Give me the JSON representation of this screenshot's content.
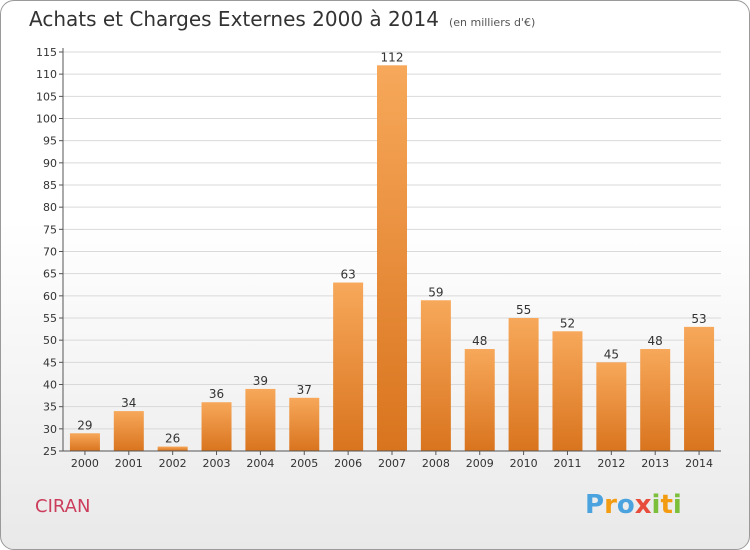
{
  "title": "Achats et Charges Externes 2000 à 2014",
  "subtitle": "(en milliers d'€)",
  "town": "CIRAN",
  "logo": {
    "text": "Proxiti",
    "letters": [
      {
        "ch": "P",
        "color": "#4aa3df"
      },
      {
        "ch": "r",
        "color": "#f39c12"
      },
      {
        "ch": "o",
        "color": "#4aa3df"
      },
      {
        "ch": "x",
        "color": "#e74c3c"
      },
      {
        "ch": "i",
        "color": "#7bbf3a"
      },
      {
        "ch": "t",
        "color": "#f39c12"
      },
      {
        "ch": "i",
        "color": "#7bbf3a"
      }
    ]
  },
  "colors": {
    "bar_light": "#f7a85a",
    "bar_dark": "#d9741e",
    "grid": "#d9d9d9",
    "axis": "#555555",
    "town": "#cc3d5c"
  },
  "chart_data": {
    "type": "bar",
    "categories": [
      "2000",
      "2001",
      "2002",
      "2003",
      "2004",
      "2005",
      "2006",
      "2007",
      "2008",
      "2009",
      "2010",
      "2011",
      "2012",
      "2013",
      "2014"
    ],
    "values": [
      29,
      34,
      26,
      36,
      39,
      37,
      63,
      112,
      59,
      48,
      55,
      52,
      45,
      48,
      53
    ],
    "title": "Achats et Charges Externes 2000 à 2014",
    "ylim": [
      25,
      115
    ],
    "yticks": [
      25,
      30,
      35,
      40,
      45,
      50,
      55,
      60,
      65,
      70,
      75,
      80,
      85,
      90,
      95,
      100,
      105,
      110,
      115
    ],
    "grid": true
  }
}
